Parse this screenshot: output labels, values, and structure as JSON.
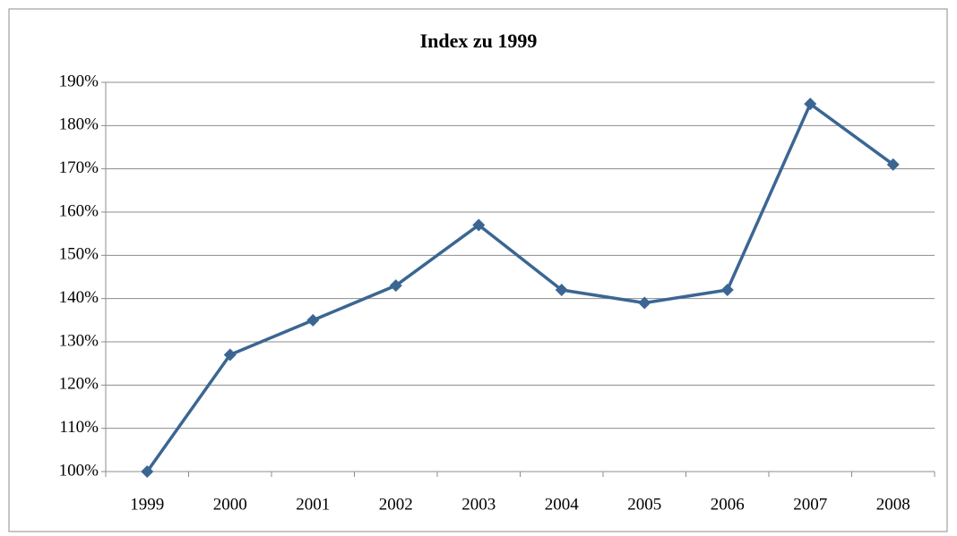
{
  "chart_data": {
    "type": "line",
    "title": "Index zu 1999",
    "categories": [
      "1999",
      "2000",
      "2001",
      "2002",
      "2003",
      "2004",
      "2005",
      "2006",
      "2007",
      "2008"
    ],
    "series": [
      {
        "name": "Index",
        "color": "#3b6693",
        "values": [
          100,
          127,
          135,
          143,
          157,
          142,
          139,
          142,
          185,
          171
        ]
      }
    ],
    "ylim": [
      100,
      190
    ],
    "yticks": [
      {
        "value": 100,
        "label": "100%"
      },
      {
        "value": 110,
        "label": "110%"
      },
      {
        "value": 120,
        "label": "120%"
      },
      {
        "value": 130,
        "label": "130%"
      },
      {
        "value": 140,
        "label": "140%"
      },
      {
        "value": 150,
        "label": "150%"
      },
      {
        "value": 160,
        "label": "160%"
      },
      {
        "value": 170,
        "label": "170%"
      },
      {
        "value": 180,
        "label": "180%"
      },
      {
        "value": 190,
        "label": "190%"
      }
    ],
    "grid": true
  }
}
